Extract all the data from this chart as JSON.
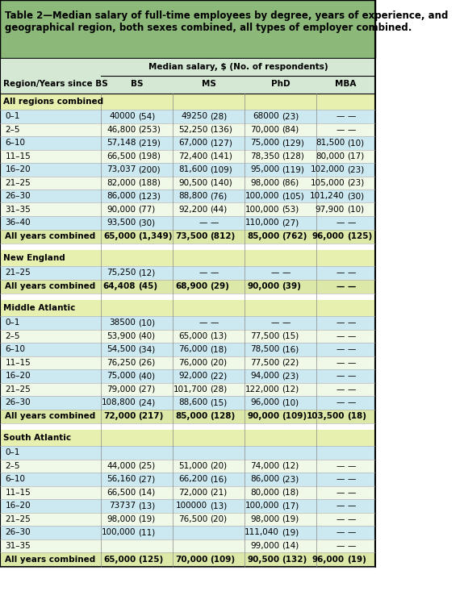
{
  "title": "Table 2—Median salary of full-time employees by degree, years of experience, and\ngeographical region, both sexes combined, all types of employer combined.",
  "header_subtitle": "Median salary, $ (No. of respondents)",
  "col_headers": [
    "Region/Years since BS",
    "BS",
    "MS",
    "PhD",
    "MBA"
  ],
  "title_bg": "#8cb87a",
  "header_bg": "#c8e6c9",
  "section_bg": "#d4ecd4",
  "row_bg_light": "#e8f4f8",
  "row_bg_alt": "#f5faed",
  "summary_row_bg": "#d4ecd4",
  "rows": [
    {
      "label": "All regions combined",
      "section": true,
      "data": [
        "",
        "",
        "",
        "",
        "",
        "",
        "",
        ""
      ]
    },
    {
      "label": "0–1",
      "section": false,
      "data": [
        "40000",
        "(54)",
        "49250",
        "(28)",
        "68000",
        "(23)",
        "—",
        "—"
      ]
    },
    {
      "label": "2–5",
      "section": false,
      "data": [
        "46,800",
        "(253)",
        "52,250",
        "(136)",
        "70,000",
        "(84)",
        "—",
        "—"
      ]
    },
    {
      "label": "6–10",
      "section": false,
      "data": [
        "57,148",
        "(219)",
        "67,000",
        "(127)",
        "75,000",
        "(129)",
        "81,500",
        "(10)"
      ]
    },
    {
      "label": "11–15",
      "section": false,
      "data": [
        "66,500",
        "(198)",
        "72,400",
        "(141)",
        "78,350",
        "(128)",
        "80,000",
        "(17)"
      ]
    },
    {
      "label": "16–20",
      "section": false,
      "data": [
        "73,037",
        "(200)",
        "81,600",
        "(109)",
        "95,000",
        "(119)",
        "102,000",
        "(23)"
      ]
    },
    {
      "label": "21–25",
      "section": false,
      "data": [
        "82,000",
        "(188)",
        "90,500",
        "(140)",
        "98,000",
        "(86)",
        "105,000",
        "(23)"
      ]
    },
    {
      "label": "26–30",
      "section": false,
      "data": [
        "86,000",
        "(123)",
        "88,800",
        "(76)",
        "100,000",
        "(105)",
        "101,240",
        "(30)"
      ]
    },
    {
      "label": "31–35",
      "section": false,
      "data": [
        "90,000",
        "(77)",
        "92,200",
        "(44)",
        "100,000",
        "(53)",
        "97,900",
        "(10)"
      ]
    },
    {
      "label": "36–40",
      "section": false,
      "data": [
        "93,500",
        "(30)",
        "—",
        "—",
        "110,000",
        "(27)",
        "—",
        "—"
      ]
    },
    {
      "label": "All years combined",
      "section": false,
      "summary": true,
      "data": [
        "65,000",
        "(1,349)",
        "73,500",
        "(812)",
        "85,000",
        "(762)",
        "96,000",
        "(125)"
      ]
    },
    {
      "label": "",
      "section": false,
      "spacer": true,
      "data": [
        "",
        "",
        "",
        "",
        "",
        "",
        "",
        ""
      ]
    },
    {
      "label": "New England",
      "section": true,
      "data": [
        "",
        "",
        "",
        "",
        "",
        "",
        "",
        ""
      ]
    },
    {
      "label": "21–25",
      "section": false,
      "data": [
        "75,250",
        "(12)",
        "—",
        "—",
        "—",
        "—",
        "—",
        "—"
      ]
    },
    {
      "label": "All years combined",
      "section": false,
      "summary": true,
      "data": [
        "64,408",
        "(45)",
        "68,900",
        "(29)",
        "90,000",
        "(39)",
        "—",
        "—"
      ]
    },
    {
      "label": "",
      "section": false,
      "spacer": true,
      "data": [
        "",
        "",
        "",
        "",
        "",
        "",
        "",
        ""
      ]
    },
    {
      "label": "Middle Atlantic",
      "section": true,
      "data": [
        "",
        "",
        "",
        "",
        "",
        "",
        "",
        ""
      ]
    },
    {
      "label": "0–1",
      "section": false,
      "data": [
        "38500",
        "(10)",
        "—",
        "—",
        "—",
        "—",
        "—",
        "—"
      ]
    },
    {
      "label": "2–5",
      "section": false,
      "data": [
        "53,900",
        "(40)",
        "65,000",
        "(13)",
        "77,500",
        "(15)",
        "—",
        "—"
      ]
    },
    {
      "label": "6–10",
      "section": false,
      "data": [
        "54,500",
        "(34)",
        "76,000",
        "(18)",
        "78,500",
        "(16)",
        "—",
        "—"
      ]
    },
    {
      "label": "11–15",
      "section": false,
      "data": [
        "76,250",
        "(26)",
        "76,000",
        "(20)",
        "77,500",
        "(22)",
        "—",
        "—"
      ]
    },
    {
      "label": "16–20",
      "section": false,
      "data": [
        "75,000",
        "(40)",
        "92,000",
        "(22)",
        "94,000",
        "(23)",
        "—",
        "—"
      ]
    },
    {
      "label": "21–25",
      "section": false,
      "data": [
        "79,000",
        "(27)",
        "101,700",
        "(28)",
        "122,000",
        "(12)",
        "—",
        "—"
      ]
    },
    {
      "label": "26–30",
      "section": false,
      "data": [
        "108,800",
        "(24)",
        "88,600",
        "(15)",
        "96,000",
        "(10)",
        "—",
        "—"
      ]
    },
    {
      "label": "All years combined",
      "section": false,
      "summary": true,
      "data": [
        "72,000",
        "(217)",
        "85,000",
        "(128)",
        "90,000",
        "(109)",
        "103,500",
        "(18)"
      ]
    },
    {
      "label": "",
      "section": false,
      "spacer": true,
      "data": [
        "",
        "",
        "",
        "",
        "",
        "",
        "",
        ""
      ]
    },
    {
      "label": "South Atlantic",
      "section": true,
      "data": [
        "",
        "",
        "",
        "",
        "",
        "",
        "",
        ""
      ]
    },
    {
      "label": "0–1",
      "section": false,
      "data": [
        "",
        "",
        "",
        "",
        "",
        "",
        "",
        ""
      ]
    },
    {
      "label": "2–5",
      "section": false,
      "data": [
        "44,000",
        "(25)",
        "51,000",
        "(20)",
        "74,000",
        "(12)",
        "—",
        "—"
      ]
    },
    {
      "label": "6–10",
      "section": false,
      "data": [
        "56,160",
        "(27)",
        "66,200",
        "(16)",
        "86,000",
        "(23)",
        "—",
        "—"
      ]
    },
    {
      "label": "11–15",
      "section": false,
      "data": [
        "66,500",
        "(14)",
        "72,000",
        "(21)",
        "80,000",
        "(18)",
        "—",
        "—"
      ]
    },
    {
      "label": "16–20",
      "section": false,
      "data": [
        "73737",
        "(13)",
        "100000",
        "(13)",
        "100,000",
        "(17)",
        "—",
        "—"
      ]
    },
    {
      "label": "21–25",
      "section": false,
      "data": [
        "98,000",
        "(19)",
        "76,500",
        "(20)",
        "98,000",
        "(19)",
        "—",
        "—"
      ]
    },
    {
      "label": "26–30",
      "section": false,
      "data": [
        "100,000",
        "(11)",
        "",
        "",
        "111,040",
        "(19)",
        "—",
        "—"
      ]
    },
    {
      "label": "31–35",
      "section": false,
      "data": [
        "",
        "",
        "",
        "",
        "99,000",
        "(14)",
        "—",
        "—"
      ]
    },
    {
      "label": "All years combined",
      "section": false,
      "summary": true,
      "data": [
        "65,000",
        "(125)",
        "70,000",
        "(109)",
        "90,500",
        "(132)",
        "96,000",
        "(19)"
      ]
    }
  ]
}
